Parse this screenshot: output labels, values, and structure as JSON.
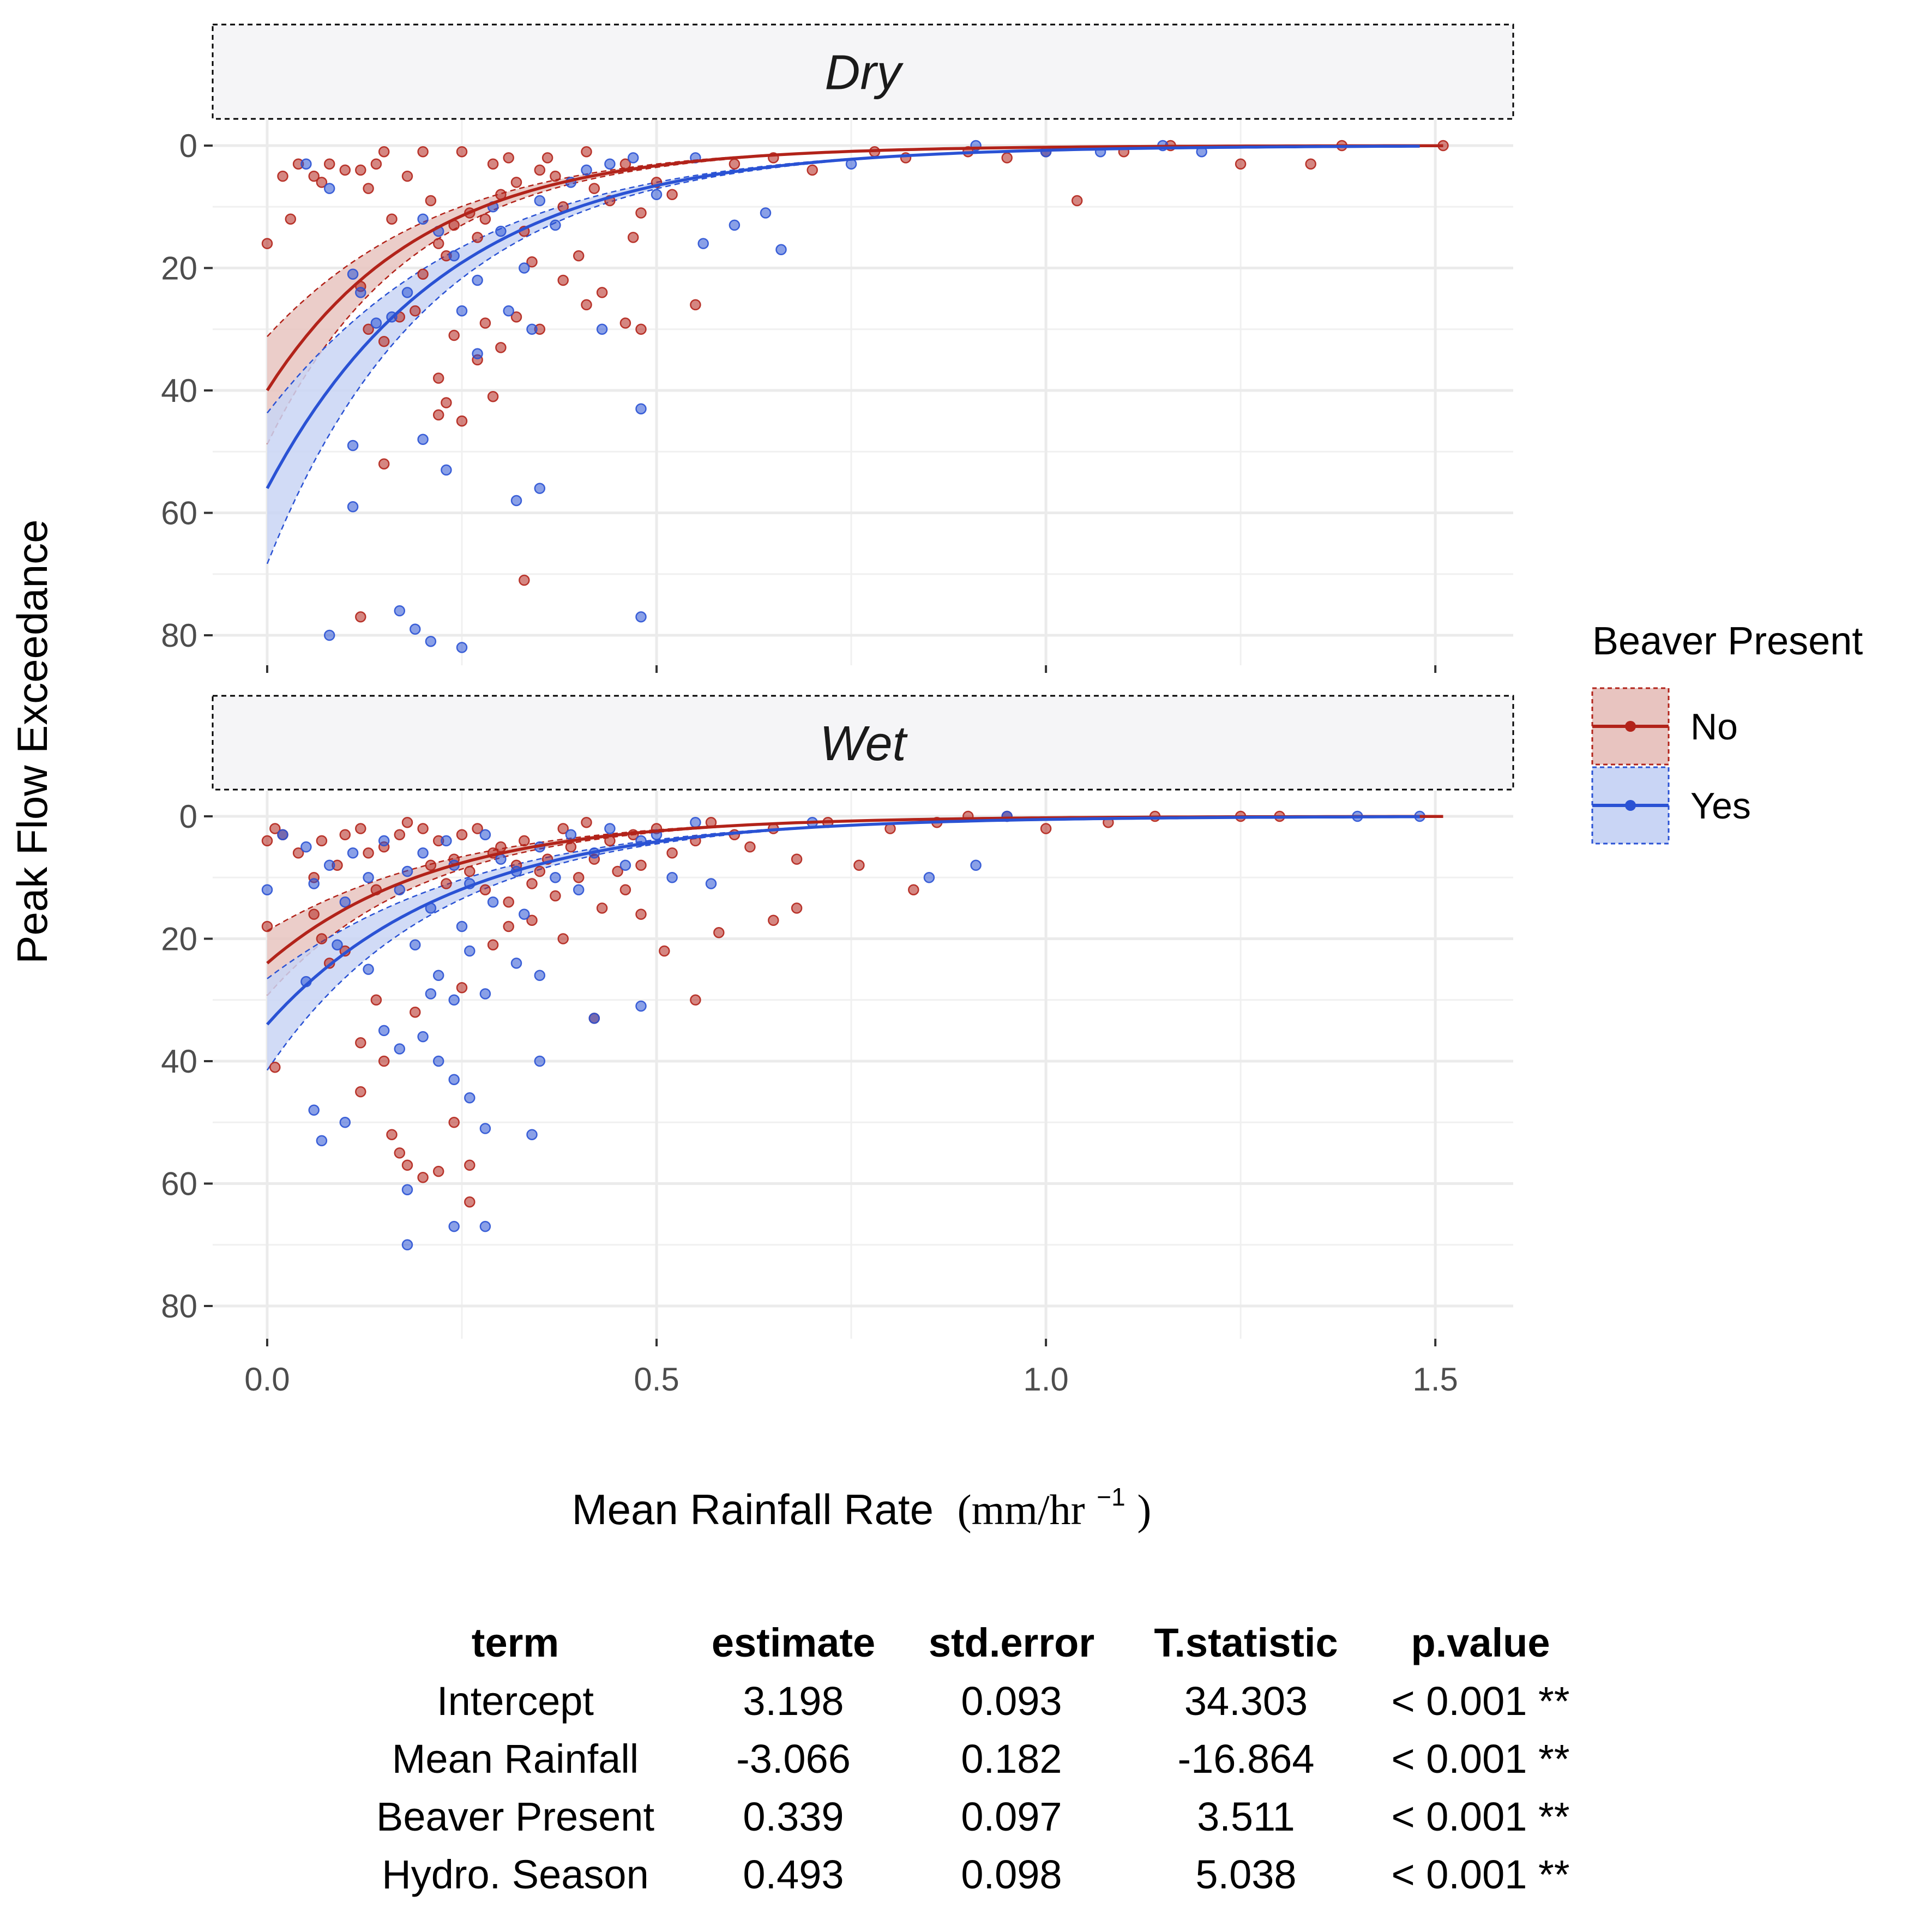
{
  "chart_data": {
    "type": "scatter",
    "facets": [
      {
        "label": "Dry",
        "fit_no": {
          "a": 40,
          "b": 5.0
        },
        "fit_yes": {
          "a": 56,
          "b": 4.3
        }
      },
      {
        "label": "Wet",
        "fit_no": {
          "a": 24,
          "b": 4.6
        },
        "fit_yes": {
          "a": 34,
          "b": 4.2
        }
      }
    ],
    "xlabel": "Mean Rainfall Rate",
    "xlabel_units": "(mm/hr",
    "xlabel_sup": "−1",
    "xlabel_close": ")",
    "ylabel": "Peak Flow Exceedance",
    "xlim": [
      -0.07,
      1.6
    ],
    "ylim": [
      0,
      85
    ],
    "y_reversed": true,
    "x_ticks": [
      0.0,
      0.5,
      1.0,
      1.5
    ],
    "x_tick_labels": [
      "0.0",
      "0.5",
      "1.0",
      "1.5"
    ],
    "y_ticks": [
      0,
      20,
      40,
      60,
      80
    ],
    "y_tick_labels": [
      "0",
      "20",
      "40",
      "60",
      "80"
    ],
    "legend": {
      "title": "Beaver Present",
      "position": "right",
      "entries": [
        {
          "label": "No",
          "color": "#b2231a",
          "fill": "#e8c4c0"
        },
        {
          "label": "Yes",
          "color": "#2a52d4",
          "fill": "#c9d5f5"
        }
      ]
    },
    "series": [
      {
        "name": "No",
        "facet": "Dry",
        "color": "#b2231a",
        "points": [
          [
            0.0,
            16
          ],
          [
            0.02,
            5
          ],
          [
            0.03,
            12
          ],
          [
            0.04,
            3
          ],
          [
            0.06,
            5
          ],
          [
            0.07,
            6
          ],
          [
            0.08,
            3
          ],
          [
            0.1,
            4
          ],
          [
            0.12,
            4
          ],
          [
            0.13,
            7
          ],
          [
            0.14,
            3
          ],
          [
            0.15,
            1
          ],
          [
            0.16,
            12
          ],
          [
            0.18,
            5
          ],
          [
            0.2,
            1
          ],
          [
            0.21,
            9
          ],
          [
            0.22,
            16
          ],
          [
            0.23,
            18
          ],
          [
            0.24,
            13
          ],
          [
            0.25,
            1
          ],
          [
            0.26,
            11
          ],
          [
            0.27,
            15
          ],
          [
            0.28,
            12
          ],
          [
            0.29,
            3
          ],
          [
            0.3,
            8
          ],
          [
            0.31,
            2
          ],
          [
            0.32,
            6
          ],
          [
            0.33,
            14
          ],
          [
            0.34,
            19
          ],
          [
            0.35,
            4
          ],
          [
            0.36,
            2
          ],
          [
            0.37,
            5
          ],
          [
            0.38,
            10
          ],
          [
            0.4,
            18
          ],
          [
            0.41,
            1
          ],
          [
            0.42,
            7
          ],
          [
            0.43,
            24
          ],
          [
            0.44,
            9
          ],
          [
            0.46,
            3
          ],
          [
            0.47,
            15
          ],
          [
            0.48,
            11
          ],
          [
            0.5,
            6
          ],
          [
            0.52,
            8
          ],
          [
            0.12,
            23
          ],
          [
            0.13,
            30
          ],
          [
            0.15,
            32
          ],
          [
            0.17,
            28
          ],
          [
            0.19,
            27
          ],
          [
            0.2,
            21
          ],
          [
            0.22,
            38
          ],
          [
            0.23,
            42
          ],
          [
            0.24,
            31
          ],
          [
            0.25,
            45
          ],
          [
            0.27,
            35
          ],
          [
            0.28,
            29
          ],
          [
            0.29,
            41
          ],
          [
            0.3,
            33
          ],
          [
            0.32,
            28
          ],
          [
            0.35,
            30
          ],
          [
            0.38,
            22
          ],
          [
            0.41,
            26
          ],
          [
            0.46,
            29
          ],
          [
            0.48,
            30
          ],
          [
            0.55,
            26
          ],
          [
            0.15,
            52
          ],
          [
            0.12,
            77
          ],
          [
            0.33,
            71
          ],
          [
            0.22,
            44
          ],
          [
            0.6,
            3
          ],
          [
            0.65,
            2
          ],
          [
            0.7,
            4
          ],
          [
            0.78,
            1
          ],
          [
            0.82,
            2
          ],
          [
            0.9,
            1
          ],
          [
            0.95,
            2
          ],
          [
            1.0,
            1
          ],
          [
            1.04,
            9
          ],
          [
            1.1,
            1
          ],
          [
            1.16,
            0
          ],
          [
            1.25,
            3
          ],
          [
            1.34,
            3
          ],
          [
            1.38,
            0
          ],
          [
            1.51,
            0
          ]
        ]
      },
      {
        "name": "Yes",
        "facet": "Dry",
        "color": "#2a52d4",
        "points": [
          [
            0.05,
            3
          ],
          [
            0.08,
            7
          ],
          [
            0.11,
            21
          ],
          [
            0.12,
            24
          ],
          [
            0.14,
            29
          ],
          [
            0.16,
            28
          ],
          [
            0.18,
            24
          ],
          [
            0.2,
            12
          ],
          [
            0.22,
            14
          ],
          [
            0.24,
            18
          ],
          [
            0.25,
            27
          ],
          [
            0.27,
            22
          ],
          [
            0.29,
            10
          ],
          [
            0.3,
            14
          ],
          [
            0.31,
            27
          ],
          [
            0.33,
            20
          ],
          [
            0.34,
            30
          ],
          [
            0.35,
            9
          ],
          [
            0.37,
            13
          ],
          [
            0.39,
            6
          ],
          [
            0.41,
            4
          ],
          [
            0.43,
            30
          ],
          [
            0.44,
            3
          ],
          [
            0.47,
            2
          ],
          [
            0.5,
            8
          ],
          [
            0.55,
            2
          ],
          [
            0.56,
            16
          ],
          [
            0.6,
            13
          ],
          [
            0.64,
            11
          ],
          [
            0.66,
            17
          ],
          [
            0.11,
            49
          ],
          [
            0.11,
            59
          ],
          [
            0.2,
            48
          ],
          [
            0.23,
            53
          ],
          [
            0.27,
            34
          ],
          [
            0.32,
            58
          ],
          [
            0.35,
            56
          ],
          [
            0.48,
            43
          ],
          [
            0.08,
            80
          ],
          [
            0.17,
            76
          ],
          [
            0.19,
            79
          ],
          [
            0.21,
            81
          ],
          [
            0.25,
            82
          ],
          [
            0.48,
            77
          ],
          [
            0.75,
            3
          ],
          [
            0.91,
            0
          ],
          [
            1.0,
            1
          ],
          [
            1.07,
            1
          ],
          [
            1.15,
            0
          ],
          [
            1.2,
            1
          ]
        ]
      },
      {
        "name": "No",
        "facet": "Wet",
        "color": "#b2231a",
        "points": [
          [
            0.0,
            4
          ],
          [
            0.01,
            2
          ],
          [
            0.02,
            3
          ],
          [
            0.04,
            6
          ],
          [
            0.06,
            10
          ],
          [
            0.07,
            4
          ],
          [
            0.09,
            8
          ],
          [
            0.1,
            3
          ],
          [
            0.12,
            2
          ],
          [
            0.13,
            6
          ],
          [
            0.14,
            12
          ],
          [
            0.15,
            5
          ],
          [
            0.17,
            3
          ],
          [
            0.18,
            1
          ],
          [
            0.2,
            2
          ],
          [
            0.21,
            8
          ],
          [
            0.22,
            4
          ],
          [
            0.23,
            11
          ],
          [
            0.24,
            7
          ],
          [
            0.25,
            3
          ],
          [
            0.26,
            9
          ],
          [
            0.27,
            2
          ],
          [
            0.28,
            12
          ],
          [
            0.29,
            6
          ],
          [
            0.3,
            5
          ],
          [
            0.31,
            14
          ],
          [
            0.32,
            8
          ],
          [
            0.33,
            4
          ],
          [
            0.34,
            11
          ],
          [
            0.35,
            9
          ],
          [
            0.36,
            7
          ],
          [
            0.37,
            13
          ],
          [
            0.38,
            2
          ],
          [
            0.39,
            5
          ],
          [
            0.4,
            10
          ],
          [
            0.41,
            1
          ],
          [
            0.42,
            7
          ],
          [
            0.43,
            15
          ],
          [
            0.44,
            4
          ],
          [
            0.45,
            9
          ],
          [
            0.46,
            12
          ],
          [
            0.47,
            3
          ],
          [
            0.48,
            8
          ],
          [
            0.5,
            2
          ],
          [
            0.52,
            6
          ],
          [
            0.55,
            4
          ],
          [
            0.57,
            1
          ],
          [
            0.6,
            3
          ],
          [
            0.62,
            5
          ],
          [
            0.65,
            2
          ],
          [
            0.68,
            7
          ],
          [
            0.72,
            1
          ],
          [
            0.76,
            8
          ],
          [
            0.8,
            2
          ],
          [
            0.83,
            12
          ],
          [
            0.86,
            1
          ],
          [
            0.9,
            0
          ],
          [
            0.95,
            0
          ],
          [
            0.0,
            18
          ],
          [
            0.01,
            41
          ],
          [
            0.06,
            16
          ],
          [
            0.07,
            20
          ],
          [
            0.08,
            24
          ],
          [
            0.1,
            22
          ],
          [
            0.12,
            37
          ],
          [
            0.12,
            45
          ],
          [
            0.14,
            30
          ],
          [
            0.15,
            40
          ],
          [
            0.16,
            52
          ],
          [
            0.17,
            55
          ],
          [
            0.18,
            57
          ],
          [
            0.19,
            32
          ],
          [
            0.2,
            59
          ],
          [
            0.22,
            58
          ],
          [
            0.24,
            50
          ],
          [
            0.25,
            28
          ],
          [
            0.26,
            57
          ],
          [
            0.26,
            63
          ],
          [
            0.29,
            21
          ],
          [
            0.31,
            18
          ],
          [
            0.34,
            17
          ],
          [
            0.38,
            20
          ],
          [
            0.42,
            33
          ],
          [
            0.48,
            16
          ],
          [
            0.51,
            22
          ],
          [
            0.55,
            30
          ],
          [
            0.58,
            19
          ],
          [
            0.65,
            17
          ],
          [
            0.68,
            15
          ],
          [
            1.0,
            2
          ],
          [
            1.08,
            1
          ],
          [
            1.14,
            0
          ],
          [
            1.25,
            0
          ],
          [
            1.3,
            0
          ]
        ]
      },
      {
        "name": "Yes",
        "facet": "Wet",
        "color": "#2a52d4",
        "points": [
          [
            0.0,
            12
          ],
          [
            0.02,
            3
          ],
          [
            0.05,
            5
          ],
          [
            0.06,
            11
          ],
          [
            0.08,
            8
          ],
          [
            0.1,
            14
          ],
          [
            0.11,
            6
          ],
          [
            0.13,
            10
          ],
          [
            0.15,
            4
          ],
          [
            0.17,
            12
          ],
          [
            0.18,
            9
          ],
          [
            0.2,
            6
          ],
          [
            0.21,
            15
          ],
          [
            0.23,
            4
          ],
          [
            0.24,
            8
          ],
          [
            0.25,
            18
          ],
          [
            0.26,
            11
          ],
          [
            0.28,
            3
          ],
          [
            0.29,
            14
          ],
          [
            0.3,
            7
          ],
          [
            0.32,
            9
          ],
          [
            0.33,
            16
          ],
          [
            0.35,
            5
          ],
          [
            0.37,
            10
          ],
          [
            0.39,
            3
          ],
          [
            0.4,
            12
          ],
          [
            0.42,
            6
          ],
          [
            0.44,
            2
          ],
          [
            0.46,
            8
          ],
          [
            0.48,
            4
          ],
          [
            0.5,
            3
          ],
          [
            0.52,
            10
          ],
          [
            0.55,
            1
          ],
          [
            0.57,
            11
          ],
          [
            0.05,
            27
          ],
          [
            0.09,
            21
          ],
          [
            0.13,
            25
          ],
          [
            0.15,
            35
          ],
          [
            0.17,
            38
          ],
          [
            0.19,
            21
          ],
          [
            0.21,
            29
          ],
          [
            0.22,
            26
          ],
          [
            0.24,
            30
          ],
          [
            0.26,
            22
          ],
          [
            0.28,
            29
          ],
          [
            0.32,
            24
          ],
          [
            0.35,
            26
          ],
          [
            0.42,
            33
          ],
          [
            0.48,
            31
          ],
          [
            0.06,
            48
          ],
          [
            0.07,
            53
          ],
          [
            0.1,
            50
          ],
          [
            0.2,
            36
          ],
          [
            0.22,
            40
          ],
          [
            0.24,
            43
          ],
          [
            0.26,
            46
          ],
          [
            0.28,
            51
          ],
          [
            0.34,
            52
          ],
          [
            0.35,
            40
          ],
          [
            0.18,
            61
          ],
          [
            0.24,
            67
          ],
          [
            0.28,
            67
          ],
          [
            0.18,
            70
          ],
          [
            0.7,
            1
          ],
          [
            0.85,
            10
          ],
          [
            0.91,
            8
          ],
          [
            0.95,
            0
          ],
          [
            1.4,
            0
          ],
          [
            1.48,
            0
          ]
        ]
      }
    ]
  },
  "table": {
    "headers": [
      "term",
      "estimate",
      "std.error",
      "T.statistic",
      "p.value"
    ],
    "rows": [
      [
        "Intercept",
        "3.198",
        "0.093",
        "34.303",
        "< 0.001 **"
      ],
      [
        "Mean Rainfall",
        "-3.066",
        "0.182",
        "-16.864",
        "< 0.001 **"
      ],
      [
        "Beaver Present",
        "0.339",
        "0.097",
        "3.511",
        "< 0.001 **"
      ],
      [
        "Hydro. Season",
        "0.493",
        "0.098",
        "5.038",
        "< 0.001 **"
      ]
    ]
  }
}
